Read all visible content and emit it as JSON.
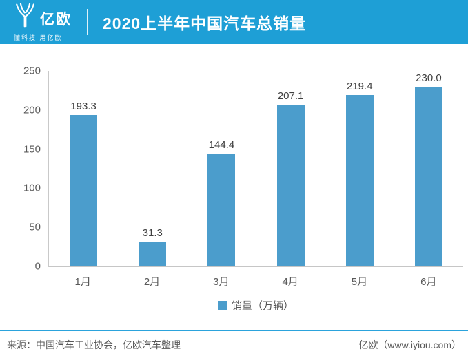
{
  "header": {
    "logo_text": "亿欧",
    "logo_tagline": "懂科技 用亿欧",
    "title": "2020上半年中国汽车总销量"
  },
  "chart_data": {
    "type": "bar",
    "title": "2020上半年中国汽车总销量",
    "categories": [
      "1月",
      "2月",
      "3月",
      "4月",
      "5月",
      "6月"
    ],
    "values": [
      193.3,
      31.3,
      144.4,
      207.1,
      219.4,
      230.0
    ],
    "value_labels": [
      "193.3",
      "31.3",
      "144.4",
      "207.1",
      "219.4",
      "230.0"
    ],
    "series_name": "销量（万辆）",
    "xlabel": "",
    "ylabel": "",
    "ylim": [
      0,
      250
    ],
    "yticks": [
      0,
      50,
      100,
      150,
      200,
      250
    ],
    "grid": false,
    "legend_position": "bottom",
    "bar_color": "#4b9dcc"
  },
  "legend": {
    "label": "销量（万辆）"
  },
  "footer": {
    "source": "来源：中国汽车工业协会，亿欧汽车整理",
    "brand": "亿欧（www.iyiou.com）"
  },
  "colors": {
    "header_bg": "#1e9fd6",
    "bar": "#4b9dcc",
    "footer_line": "#2ba3dc",
    "axis_line": "#c9c9c9"
  }
}
